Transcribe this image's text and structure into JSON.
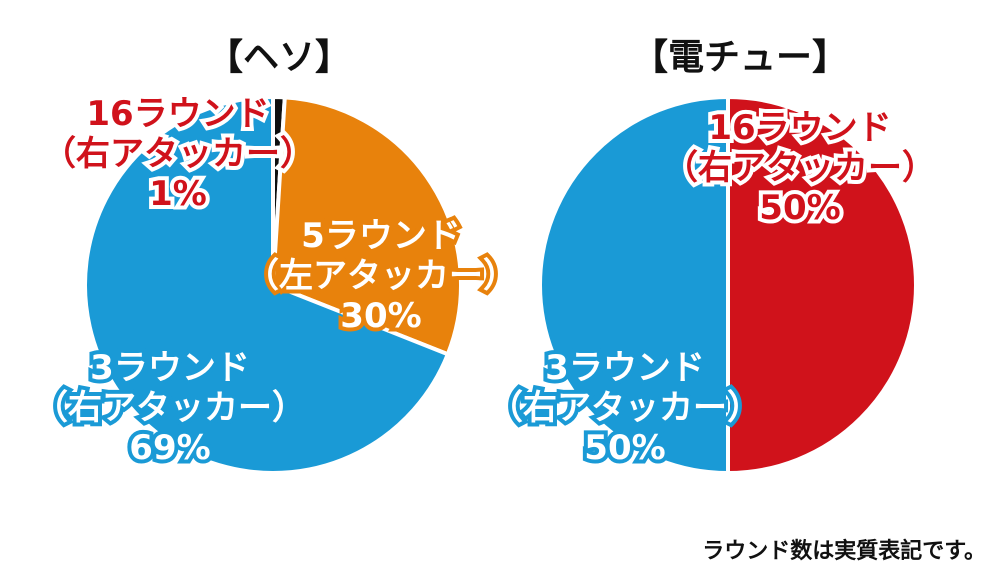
{
  "chart_data": [
    {
      "type": "pie",
      "title": "【ヘソ】",
      "slices": [
        {
          "label_lines": [
            "16ラウンド",
            "（右アタッカー）",
            "1%"
          ],
          "value": 1,
          "color": "#0f0f0f"
        },
        {
          "label_lines": [
            "5ラウンド",
            "（左アタッカー）",
            "30%"
          ],
          "value": 30,
          "color": "#e8820c"
        },
        {
          "label_lines": [
            "3ラウンド",
            "（右アタッカー）",
            "69%"
          ],
          "value": 69,
          "color": "#1a9ad6"
        }
      ]
    },
    {
      "type": "pie",
      "title": "【電チュー】",
      "slices": [
        {
          "label_lines": [
            "16ラウンド",
            "（右アタッカー）",
            "50%"
          ],
          "value": 50,
          "color": "#d0121b"
        },
        {
          "label_lines": [
            "3ラウンド",
            "（右アタッカー）",
            "50%"
          ],
          "value": 50,
          "color": "#1a9ad6"
        }
      ]
    }
  ],
  "footnote": "ラウンド数は実質表記です。"
}
